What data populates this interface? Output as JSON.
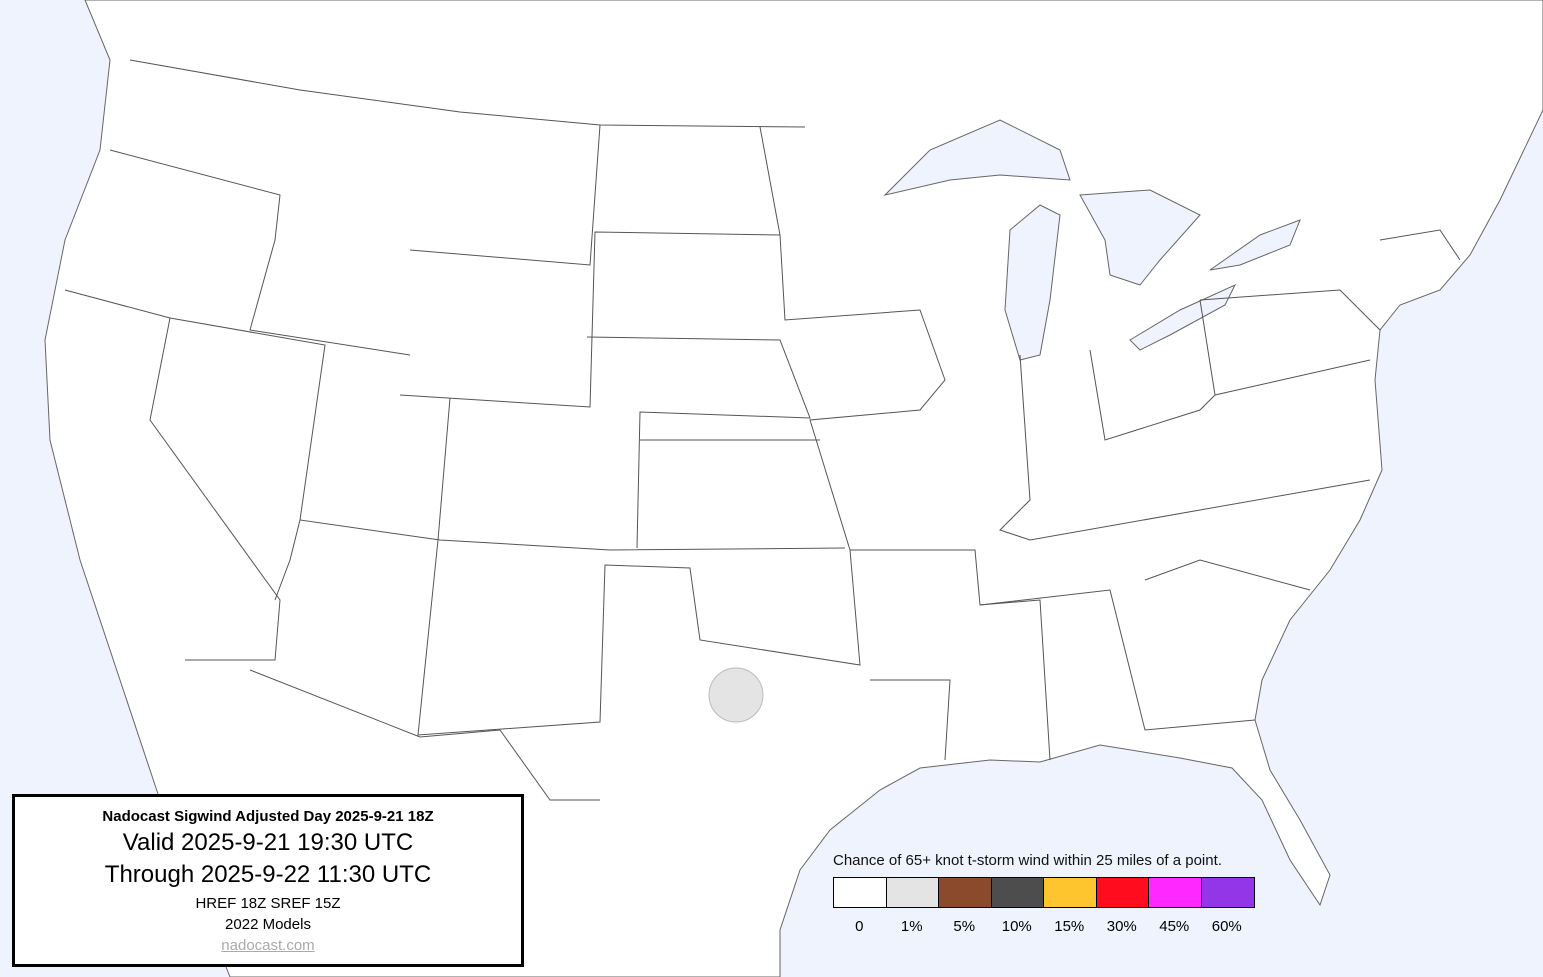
{
  "info_box": {
    "title": "Nadocast Sigwind Adjusted Day 2025-9-21 18Z",
    "valid": "Valid 2025-9-21 19:30 UTC",
    "through": "Through 2025-9-22 11:30 UTC",
    "models": "HREF 18Z SREF 15Z",
    "model_year": "2022 Models",
    "link": "nadocast.com"
  },
  "legend": {
    "title": "Chance of 65+ knot t-storm wind within 25 miles of a point.",
    "bins": [
      {
        "label": "0",
        "color": "#ffffff"
      },
      {
        "label": "1%",
        "color": "#e4e4e4"
      },
      {
        "label": "5%",
        "color": "#8b4a2b"
      },
      {
        "label": "10%",
        "color": "#4d4d4d"
      },
      {
        "label": "15%",
        "color": "#ffc52e"
      },
      {
        "label": "30%",
        "color": "#ff0d1f"
      },
      {
        "label": "45%",
        "color": "#ff28ff"
      },
      {
        "label": "60%",
        "color": "#9236e8"
      }
    ]
  },
  "map": {
    "water_color": "#eef3fd",
    "land_color": "#ffffff",
    "forecast_areas": [
      {
        "category": "1%",
        "color": "#e4e4e4",
        "region": "north-central Texas"
      }
    ]
  }
}
